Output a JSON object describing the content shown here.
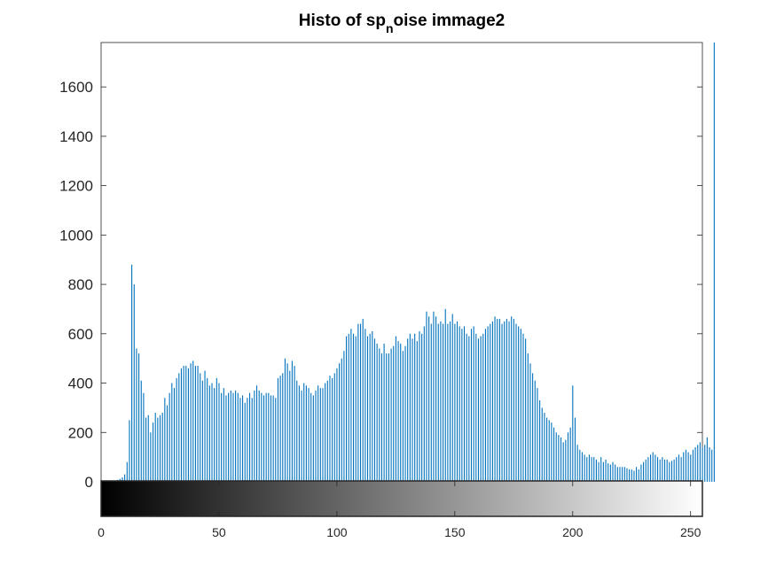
{
  "chart_data": {
    "type": "bar",
    "title_parts": [
      "Histo of sp",
      "n",
      "oise immage2"
    ],
    "xlabel": "",
    "ylabel": "",
    "xlim": [
      0,
      255
    ],
    "ylim": [
      0,
      1780
    ],
    "yticks": [
      "0",
      "200",
      "400",
      "600",
      "800",
      "1000",
      "1200",
      "1400",
      "1600"
    ],
    "xticks": [
      "0",
      "50",
      "100",
      "150",
      "200",
      "250"
    ],
    "bar_color": "#0072BD",
    "grid": false,
    "legend": "none",
    "colorbar": "grayscale 0-255 below axis",
    "x_start": 0,
    "x_step": 1,
    "values": [
      0,
      0,
      0,
      0,
      0,
      2,
      5,
      8,
      12,
      18,
      30,
      80,
      250,
      880,
      800,
      540,
      520,
      410,
      360,
      260,
      270,
      200,
      240,
      280,
      260,
      270,
      280,
      340,
      310,
      360,
      400,
      380,
      420,
      440,
      460,
      470,
      470,
      460,
      480,
      490,
      470,
      470,
      440,
      410,
      450,
      420,
      390,
      400,
      380,
      420,
      400,
      360,
      380,
      350,
      360,
      370,
      360,
      370,
      360,
      340,
      350,
      320,
      340,
      360,
      340,
      370,
      390,
      370,
      360,
      350,
      360,
      360,
      350,
      350,
      340,
      420,
      430,
      440,
      500,
      480,
      450,
      490,
      470,
      410,
      390,
      370,
      400,
      390,
      380,
      360,
      350,
      370,
      390,
      380,
      380,
      400,
      410,
      430,
      420,
      440,
      460,
      480,
      500,
      530,
      590,
      600,
      620,
      600,
      590,
      640,
      640,
      660,
      620,
      590,
      600,
      610,
      580,
      560,
      540,
      520,
      560,
      520,
      520,
      540,
      550,
      590,
      570,
      560,
      530,
      550,
      580,
      600,
      580,
      600,
      570,
      610,
      600,
      630,
      690,
      670,
      640,
      690,
      670,
      640,
      650,
      640,
      700,
      640,
      650,
      680,
      640,
      650,
      630,
      620,
      630,
      600,
      590,
      620,
      630,
      600,
      580,
      590,
      600,
      620,
      630,
      640,
      650,
      670,
      660,
      660,
      640,
      650,
      660,
      650,
      670,
      660,
      640,
      630,
      620,
      600,
      580,
      520,
      480,
      440,
      410,
      380,
      330,
      300,
      280,
      260,
      250,
      240,
      220,
      200,
      190,
      180,
      160,
      170,
      200,
      220,
      390,
      260,
      150,
      130,
      120,
      110,
      100,
      110,
      100,
      100,
      90,
      80,
      100,
      80,
      90,
      75,
      70,
      80,
      70,
      60,
      60,
      60,
      60,
      55,
      50,
      50,
      45,
      60,
      50,
      70,
      80,
      90,
      100,
      110,
      120,
      110,
      100,
      90,
      100,
      90,
      90,
      80,
      85,
      90,
      100,
      110,
      100,
      120,
      130,
      120,
      110,
      130,
      140,
      150,
      160,
      140,
      150,
      180,
      140,
      130,
      1780,
      0,
      0,
      0
    ]
  }
}
